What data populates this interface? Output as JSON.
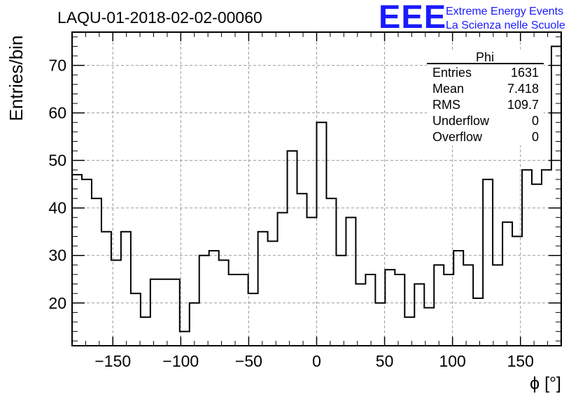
{
  "run_title": "LAQU-01-2018-02-02-00060",
  "logo": {
    "letters": "EEE",
    "line1": "Extreme Energy Events",
    "line2": "La Scienza nelle Scuole",
    "color": "#1a1aff"
  },
  "stats": {
    "name": "Phi",
    "rows": [
      {
        "label": "Entries",
        "value": "1631"
      },
      {
        "label": "Mean",
        "value": "7.418"
      },
      {
        "label": "RMS",
        "value": "109.7"
      },
      {
        "label": "Underflow",
        "value": "0"
      },
      {
        "label": "Overflow",
        "value": "0"
      }
    ]
  },
  "chart_data": {
    "type": "histogram",
    "title": "LAQU-01-2018-02-02-00060",
    "xlabel": "ϕ [°]",
    "ylabel": "Entries/bin",
    "xlim": [
      -180,
      180
    ],
    "ylim": [
      11,
      77
    ],
    "bin_width": 7.2,
    "grid": true,
    "xticks": [
      -150,
      -100,
      -50,
      0,
      50,
      100,
      150
    ],
    "yticks": [
      20,
      30,
      40,
      50,
      60,
      70
    ],
    "values": [
      47,
      46,
      42,
      35,
      29,
      35,
      22,
      17,
      25,
      25,
      25,
      14,
      20,
      30,
      31,
      29,
      26,
      26,
      22,
      35,
      33,
      39,
      52,
      43,
      38,
      58,
      42,
      30,
      38,
      24,
      26,
      20,
      27,
      26,
      17,
      24,
      19,
      28,
      26,
      31,
      28,
      21,
      46,
      28,
      37,
      34,
      48,
      45,
      48,
      74
    ],
    "line_color": "#000000"
  }
}
